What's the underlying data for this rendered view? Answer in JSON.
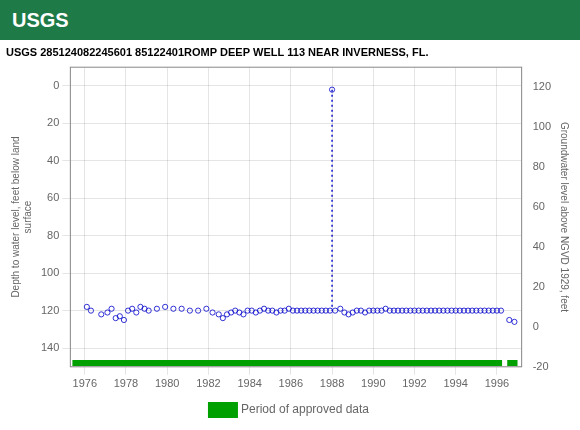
{
  "chart_data": {
    "type": "scatter",
    "title": "USGS 285124082245601 85122401ROMP DEEP WELL 113 NEAR INVERNESS, FL.",
    "annotations": [
      "USGS"
    ],
    "ylabel": "Depth to water level, feet below land\nsurface",
    "y2label": "Groundwater level above NGVD 1929, feet",
    "xlim": [
      1975.3,
      1997.2
    ],
    "xticks": [
      1976,
      1978,
      1980,
      1982,
      1984,
      1986,
      1988,
      1990,
      1992,
      1994,
      1996
    ],
    "ylim": [
      150,
      -10
    ],
    "yticks": [
      0,
      20,
      40,
      60,
      80,
      100,
      120,
      140
    ],
    "y2lim": [
      -20,
      130
    ],
    "y2ticks": [
      -20,
      0,
      20,
      40,
      60,
      80,
      100,
      120
    ],
    "grid": true,
    "legend": "bottom",
    "series": [
      {
        "type": "scatter",
        "color": "#0000cc",
        "marker": "circle",
        "x": [
          1976.1,
          1976.3,
          1976.8,
          1977.1,
          1977.3,
          1977.5,
          1977.7,
          1977.9,
          1978.1,
          1978.3,
          1978.5,
          1978.7,
          1978.9,
          1979.1,
          1979.5,
          1979.9,
          1980.3,
          1980.7,
          1981.1,
          1981.5,
          1981.9,
          1982.2,
          1982.5,
          1982.7,
          1982.9,
          1983.1,
          1983.3,
          1983.5,
          1983.7,
          1983.9,
          1984.1,
          1984.3,
          1984.5,
          1984.7,
          1984.9,
          1985.1,
          1985.3,
          1985.5,
          1985.7,
          1985.9,
          1986.1,
          1986.3,
          1986.5,
          1986.7,
          1986.9,
          1987.1,
          1987.3,
          1987.5,
          1987.7,
          1987.9,
          1988.0,
          1988.15,
          1988.4,
          1988.6,
          1988.8,
          1989.0,
          1989.2,
          1989.4,
          1989.6,
          1989.8,
          1990.0,
          1990.2,
          1990.4,
          1990.6,
          1990.8,
          1991.0,
          1991.2,
          1991.4,
          1991.6,
          1991.8,
          1992.0,
          1992.2,
          1992.4,
          1992.6,
          1992.8,
          1993.0,
          1993.2,
          1993.4,
          1993.6,
          1993.8,
          1994.0,
          1994.2,
          1994.4,
          1994.6,
          1994.8,
          1995.0,
          1995.2,
          1995.4,
          1995.6,
          1995.8,
          1996.0,
          1996.2,
          1996.6,
          1996.85
        ],
        "values": [
          118,
          120,
          122,
          121,
          119,
          124,
          123,
          125,
          120,
          119,
          121,
          118,
          119,
          120,
          119,
          118,
          119,
          119,
          120,
          120,
          119,
          121,
          122,
          124,
          122,
          121,
          120,
          121,
          122,
          120,
          120,
          121,
          120,
          119,
          120,
          120,
          121,
          120,
          120,
          119,
          120,
          120,
          120,
          120,
          120,
          120,
          120,
          120,
          120,
          120,
          2,
          120,
          119,
          121,
          122,
          121,
          120,
          120,
          121,
          120,
          120,
          120,
          120,
          119,
          120,
          120,
          120,
          120,
          120,
          120,
          120,
          120,
          120,
          120,
          120,
          120,
          120,
          120,
          120,
          120,
          120,
          120,
          120,
          120,
          120,
          120,
          120,
          120,
          120,
          120,
          120,
          120,
          125,
          126
        ]
      },
      {
        "type": "line",
        "color": "#0000cc",
        "line_style": "dotted",
        "x": [
          1988.0,
          1988.0
        ],
        "values": [
          2,
          120
        ]
      },
      {
        "name": "Period of approved data",
        "type": "bar",
        "orientation": "horizontal",
        "color": "#00a000",
        "y": 148,
        "ranges": [
          [
            1975.4,
            1996.25
          ],
          [
            1996.5,
            1997.0
          ]
        ]
      }
    ]
  }
}
